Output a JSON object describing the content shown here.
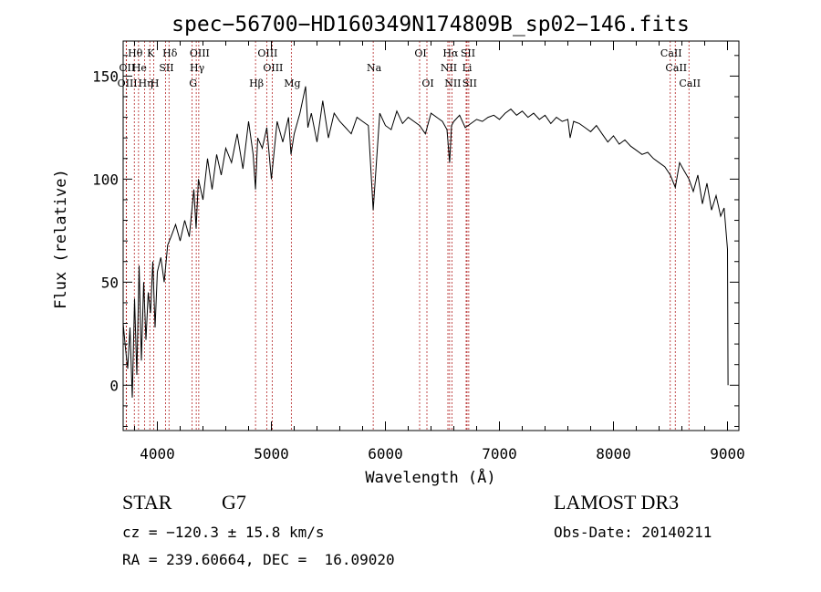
{
  "chart_data": {
    "type": "line",
    "title": "spec−56700−HD160349N174809B_sp02−146.fits",
    "xlabel": "Wavelength (Å)",
    "ylabel": "Flux (relative)",
    "xlim": [
      3700,
      9100
    ],
    "ylim": [
      -22,
      167
    ],
    "xticks": [
      4000,
      5000,
      6000,
      7000,
      8000,
      9000
    ],
    "yticks": [
      0,
      50,
      100,
      150
    ],
    "grid": false,
    "legend": "none",
    "line_color": "#000000",
    "marker_color": "#b22222",
    "x": [
      3700,
      3720,
      3740,
      3760,
      3780,
      3800,
      3820,
      3840,
      3860,
      3880,
      3900,
      3920,
      3940,
      3960,
      3980,
      4000,
      4030,
      4060,
      4090,
      4120,
      4160,
      4200,
      4240,
      4280,
      4320,
      4340,
      4360,
      4400,
      4440,
      4480,
      4520,
      4560,
      4600,
      4650,
      4700,
      4750,
      4800,
      4840,
      4861,
      4880,
      4920,
      4960,
      5000,
      5050,
      5100,
      5150,
      5172,
      5200,
      5250,
      5300,
      5320,
      5350,
      5400,
      5450,
      5500,
      5550,
      5600,
      5650,
      5700,
      5750,
      5800,
      5850,
      5893,
      5950,
      6000,
      6050,
      6100,
      6150,
      6200,
      6250,
      6300,
      6350,
      6400,
      6450,
      6500,
      6540,
      6563,
      6580,
      6600,
      6650,
      6700,
      6750,
      6800,
      6850,
      6900,
      6950,
      7000,
      7050,
      7100,
      7150,
      7200,
      7250,
      7300,
      7350,
      7400,
      7450,
      7500,
      7550,
      7600,
      7620,
      7650,
      7700,
      7750,
      7800,
      7850,
      7900,
      7950,
      8000,
      8050,
      8100,
      8150,
      8200,
      8250,
      8300,
      8350,
      8400,
      8450,
      8498,
      8542,
      8580,
      8620,
      8662,
      8700,
      8740,
      8780,
      8820,
      8860,
      8900,
      8940,
      8970,
      9000,
      9005
    ],
    "y": [
      30,
      18,
      8,
      28,
      -6,
      42,
      5,
      58,
      12,
      50,
      22,
      45,
      35,
      60,
      28,
      55,
      62,
      50,
      68,
      72,
      78,
      70,
      80,
      72,
      95,
      76,
      100,
      90,
      110,
      95,
      112,
      102,
      115,
      108,
      122,
      105,
      128,
      112,
      95,
      120,
      115,
      125,
      100,
      128,
      118,
      130,
      112,
      122,
      132,
      145,
      125,
      132,
      118,
      138,
      120,
      132,
      128,
      125,
      122,
      130,
      128,
      126,
      85,
      132,
      126,
      124,
      133,
      127,
      130,
      128,
      126,
      122,
      132,
      130,
      128,
      124,
      108,
      126,
      128,
      131,
      125,
      127,
      129,
      128,
      130,
      131,
      129,
      132,
      134,
      131,
      133,
      130,
      132,
      129,
      131,
      127,
      130,
      128,
      129,
      120,
      128,
      127,
      125,
      123,
      126,
      122,
      118,
      121,
      117,
      119,
      116,
      114,
      112,
      113,
      110,
      108,
      106,
      102,
      96,
      108,
      104,
      100,
      94,
      102,
      88,
      98,
      85,
      92,
      82,
      86,
      66,
      0
    ],
    "lines": [
      {
        "label": "Hθ",
        "wave": 3798,
        "row": 1
      },
      {
        "label": "OII",
        "wave": 3727,
        "row": 2
      },
      {
        "label": "OIII",
        "wave": 3729,
        "row": 3
      },
      {
        "label": "He",
        "wave": 3835,
        "row": 2
      },
      {
        "label": "Hη",
        "wave": 3889,
        "row": 3
      },
      {
        "label": "K",
        "wave": 3934,
        "row": 1
      },
      {
        "label": "H",
        "wave": 3969,
        "row": 3
      },
      {
        "label": "SII",
        "wave": 4072,
        "row": 2
      },
      {
        "label": "Hδ",
        "wave": 4102,
        "row": 1
      },
      {
        "label": "OIII",
        "wave": 4363,
        "row": 1
      },
      {
        "label": "Hγ",
        "wave": 4341,
        "row": 2
      },
      {
        "label": "G",
        "wave": 4305,
        "row": 3
      },
      {
        "label": "Hβ",
        "wave": 4861,
        "row": 3
      },
      {
        "label": "OIII",
        "wave": 4959,
        "row": 1
      },
      {
        "label": "OIII",
        "wave": 5007,
        "row": 2
      },
      {
        "label": "Mg",
        "wave": 5175,
        "row": 3
      },
      {
        "label": "Na",
        "wave": 5893,
        "row": 2
      },
      {
        "label": "OI",
        "wave": 6300,
        "row": 1
      },
      {
        "label": "OI",
        "wave": 6364,
        "row": 3
      },
      {
        "label": "Hα",
        "wave": 6563,
        "row": 1
      },
      {
        "label": "NII",
        "wave": 6548,
        "row": 2
      },
      {
        "label": "NII",
        "wave": 6583,
        "row": 3
      },
      {
        "label": "SII",
        "wave": 6716,
        "row": 1
      },
      {
        "label": "Li",
        "wave": 6708,
        "row": 2
      },
      {
        "label": "SII",
        "wave": 6731,
        "row": 3
      },
      {
        "label": "CaII",
        "wave": 8498,
        "row": 1
      },
      {
        "label": "CaII",
        "wave": 8542,
        "row": 2
      },
      {
        "label": "CaII",
        "wave": 8662,
        "row": 3
      }
    ]
  },
  "info": {
    "class": "STAR",
    "subclass": "G7",
    "survey": "LAMOST DR3",
    "cz": "cz = −120.3 ± 15.8 km/s",
    "obs_date": "Obs-Date: 20140211",
    "coords": "RA = 239.60664, DEC =  16.09020"
  }
}
